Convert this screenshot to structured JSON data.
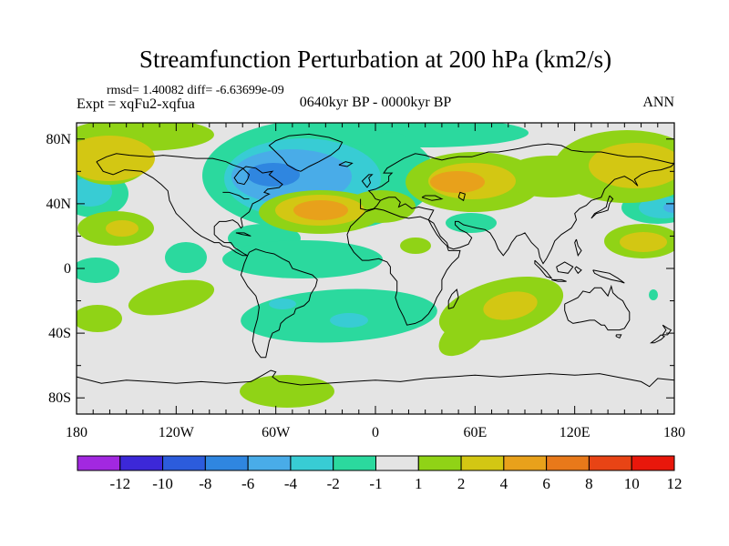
{
  "header": {
    "title": "Streamfunction Perturbation at 200 hPa (km2/s)",
    "stats_line": "rmsd= 1.40082 diff= -6.63699e-09",
    "experiment_line": "Expt = xqFu2-xqfua",
    "period_line": "0640kyr BP - 0000kyr BP",
    "season_label": "ANN"
  },
  "chart_data": {
    "type": "heatmap",
    "subtype": "filled-contour-world-map",
    "title": "Streamfunction Perturbation at 200 hPa (km2/s)",
    "units": "km2/s",
    "projection": "equirectangular",
    "lon_range": [
      -180,
      180
    ],
    "lat_range": [
      -90,
      90
    ],
    "grid": false,
    "background_value_color": "#E4E4E4",
    "lon_tick_labels": [
      {
        "label": "180",
        "lon": -180
      },
      {
        "label": "120W",
        "lon": -120
      },
      {
        "label": "60W",
        "lon": -60
      },
      {
        "label": "0",
        "lon": 0
      },
      {
        "label": "60E",
        "lon": 60
      },
      {
        "label": "120E",
        "lon": 120
      },
      {
        "label": "180",
        "lon": 180
      }
    ],
    "lat_tick_labels": [
      {
        "label": "80N",
        "lat": 80
      },
      {
        "label": "40N",
        "lat": 40
      },
      {
        "label": "0",
        "lat": 0
      },
      {
        "label": "40S",
        "lat": -40
      },
      {
        "label": "80S",
        "lat": -80
      }
    ],
    "colorbar": {
      "orientation": "horizontal",
      "boundary_labels": [
        "-12",
        "-10",
        "-8",
        "-6",
        "-4",
        "-2",
        "-1",
        "1",
        "2",
        "4",
        "6",
        "8",
        "10",
        "12"
      ],
      "segment_colors": [
        "#A228E0",
        "#3C28D8",
        "#2C5CDC",
        "#2F86E0",
        "#49ACE8",
        "#38CCD4",
        "#2BD99E",
        "#E4E4E4",
        "#90D316",
        "#D3C713",
        "#E8A11B",
        "#E8791A",
        "#E84415",
        "#E8170B"
      ]
    },
    "level_colors": {
      "-8": "#2F86E0",
      "-6": "#49ACE8",
      "-4": "#38CCD4",
      "-2": "#2BD99E",
      "1": "#90D316",
      "2": "#D3C713",
      "4": "#E8A11B"
    },
    "anomalies": [
      {
        "region": "north-america-north-atlantic-outer",
        "value_bin": "-2 to -1",
        "color": "#2BD99E",
        "ellipse": [
          350,
          193,
          128,
          62,
          0
        ]
      },
      {
        "region": "arctic-ocean-band",
        "value_bin": "-2 to -1",
        "color": "#2BD99E",
        "ellipse": [
          465,
          146,
          115,
          16,
          0
        ]
      },
      {
        "region": "scandinavia-lobe",
        "value_bin": "-2 to -1",
        "color": "#2BD99E",
        "ellipse": [
          428,
          185,
          36,
          40,
          0
        ]
      },
      {
        "region": "gulf-of-mexico-link",
        "value_bin": "-2 to -1",
        "color": "#2BD99E",
        "ellipse": [
          290,
          262,
          40,
          16,
          0
        ]
      },
      {
        "region": "caribbean-tropical-atlantic-band",
        "value_bin": "-2 to -1",
        "color": "#2BD99E",
        "ellipse": [
          332,
          285,
          88,
          21,
          0
        ]
      },
      {
        "region": "east-pacific-equatorial",
        "value_bin": "-2 to -1",
        "color": "#2BD99E",
        "ellipse": [
          204,
          283,
          23,
          17,
          0
        ]
      },
      {
        "region": "dateline-equatorial",
        "value_bin": "-2 to -1",
        "color": "#2BD99E",
        "ellipse": [
          105,
          297,
          26,
          14,
          0
        ]
      },
      {
        "region": "south-america-south-atlantic-band",
        "value_bin": "-2 to -1",
        "color": "#2BD99E",
        "ellipse": [
          372,
          347,
          108,
          29,
          -3
        ]
      },
      {
        "region": "tibet",
        "value_bin": "-2 to -1",
        "color": "#2BD99E",
        "ellipse": [
          517,
          245,
          28,
          11,
          0
        ]
      },
      {
        "region": "southwest-pacific-speck",
        "value_bin": "-2 to -1",
        "color": "#2BD99E",
        "ellipse": [
          717,
          324,
          5,
          6,
          0
        ]
      },
      {
        "region": "northwest-pacific-outer",
        "value_bin": "-2 to -1",
        "color": "#2BD99E",
        "ellipse": [
          722,
          228,
          40,
          18,
          0
        ]
      },
      {
        "region": "north-pacific-dateline-outer",
        "value_bin": "-2 to -1",
        "color": "#2BD99E",
        "ellipse": [
          103,
          213,
          38,
          26,
          0
        ]
      },
      {
        "region": "canada-north-atlantic",
        "value_bin": "-4 to -2",
        "color": "#38CCD4",
        "ellipse": [
          332,
          196,
          86,
          44,
          0
        ]
      },
      {
        "region": "south-america-inset-west",
        "value_bin": "-4 to -2",
        "color": "#38CCD4",
        "ellipse": [
          310,
          334,
          15,
          6,
          0
        ]
      },
      {
        "region": "south-atlantic-inset",
        "value_bin": "-4 to -2",
        "color": "#38CCD4",
        "ellipse": [
          383,
          352,
          21,
          8,
          0
        ]
      },
      {
        "region": "northwest-pacific-mid",
        "value_bin": "-4 to -2",
        "color": "#38CCD4",
        "ellipse": [
          728,
          228,
          27,
          12,
          0
        ]
      },
      {
        "region": "north-pacific-dateline-core",
        "value_bin": "-4 to -2",
        "color": "#38CCD4",
        "ellipse": [
          99,
          211,
          24,
          16,
          0
        ]
      },
      {
        "region": "hudson-north-atlantic",
        "value_bin": "-6 to -4",
        "color": "#49ACE8",
        "ellipse": [
          320,
          194,
          66,
          30,
          0
        ]
      },
      {
        "region": "northwest-pacific-core",
        "value_bin": "-6 to -4",
        "color": "#49ACE8",
        "ellipse": [
          740,
          228,
          12,
          6,
          0
        ]
      },
      {
        "region": "hudson-bay-core",
        "value_bin": "-8 to -6",
        "color": "#2F86E0",
        "ellipse": [
          300,
          192,
          29,
          13,
          0
        ]
      },
      {
        "region": "alaska-top-band",
        "value_bin": "1 to 2",
        "color": "#90D316",
        "ellipse": [
          155,
          148,
          80,
          18,
          0
        ]
      },
      {
        "region": "alaska-outer",
        "value_bin": "1 to 2",
        "color": "#90D316",
        "ellipse": [
          120,
          172,
          46,
          31,
          0
        ]
      },
      {
        "region": "central-asia-outer",
        "value_bin": "1 to 2",
        "color": "#90D316",
        "ellipse": [
          520,
          200,
          75,
          33,
          0
        ]
      },
      {
        "region": "east-siberia-outer",
        "value_bin": "1 to 2",
        "color": "#90D316",
        "ellipse": [
          688,
          183,
          80,
          40,
          0
        ]
      },
      {
        "region": "siberia-bridge",
        "value_bin": "1 to 2",
        "color": "#90D316",
        "ellipse": [
          605,
          194,
          55,
          23,
          0
        ]
      },
      {
        "region": "northeast-atlantic-outer",
        "value_bin": "1 to 2",
        "color": "#90D316",
        "ellipse": [
          352,
          233,
          68,
          24,
          0
        ]
      },
      {
        "region": "iberia-extension",
        "value_bin": "1 to 2",
        "color": "#90D316",
        "ellipse": [
          418,
          227,
          38,
          18,
          0
        ]
      },
      {
        "region": "central-north-pacific",
        "value_bin": "1 to 2",
        "color": "#90D316",
        "ellipse": [
          127,
          251,
          42,
          19,
          0
        ]
      },
      {
        "region": "arabia",
        "value_bin": "1 to 2",
        "color": "#90D316",
        "ellipse": [
          456,
          270,
          17,
          9,
          0
        ]
      },
      {
        "region": "philippine-sea-outer",
        "value_bin": "1 to 2",
        "color": "#90D316",
        "ellipse": [
          705,
          265,
          42,
          19,
          0
        ]
      },
      {
        "region": "south-pacific",
        "value_bin": "1 to 2",
        "color": "#90D316",
        "ellipse": [
          188,
          327,
          48,
          17,
          -12
        ]
      },
      {
        "region": "south-pacific-dateline",
        "value_bin": "1 to 2",
        "color": "#90D316",
        "ellipse": [
          107,
          350,
          27,
          15,
          0
        ]
      },
      {
        "region": "south-indian-ocean-outer",
        "value_bin": "1 to 2",
        "color": "#90D316",
        "ellipse": [
          550,
          339,
          70,
          31,
          -15
        ]
      },
      {
        "region": "south-indian-ocean-tail",
        "value_bin": "1 to 2",
        "color": "#90D316",
        "ellipse": [
          508,
          369,
          30,
          17,
          -35
        ]
      },
      {
        "region": "antarctic-peninsula",
        "value_bin": "1 to 2",
        "color": "#90D316",
        "ellipse": [
          315,
          430,
          52,
          18,
          0
        ]
      },
      {
        "region": "alaska-core",
        "value_bin": "2 to 4",
        "color": "#D3C713",
        "ellipse": [
          120,
          174,
          50,
          25,
          0
        ]
      },
      {
        "region": "central-asia-mid",
        "value_bin": "2 to 4",
        "color": "#D3C713",
        "ellipse": [
          518,
          199,
          48,
          20,
          0
        ]
      },
      {
        "region": "east-siberia-core",
        "value_bin": "2 to 4",
        "color": "#D3C713",
        "ellipse": [
          698,
          182,
          52,
          25,
          0
        ]
      },
      {
        "region": "northeast-atlantic-mid",
        "value_bin": "2 to 4",
        "color": "#D3C713",
        "ellipse": [
          351,
          231,
          49,
          17,
          0
        ]
      },
      {
        "region": "central-north-pacific-core",
        "value_bin": "2 to 4",
        "color": "#D3C713",
        "ellipse": [
          134,
          251,
          18,
          9,
          0
        ]
      },
      {
        "region": "philippine-sea-core",
        "value_bin": "2 to 4",
        "color": "#D3C713",
        "ellipse": [
          706,
          266,
          26,
          11,
          0
        ]
      },
      {
        "region": "south-indian-ocean-core",
        "value_bin": "2 to 4",
        "color": "#D3C713",
        "ellipse": [
          560,
          336,
          30,
          15,
          -10
        ]
      },
      {
        "region": "central-asia-core",
        "value_bin": "4 to 6",
        "color": "#E8A11B",
        "ellipse": [
          502,
          200,
          30,
          12,
          0
        ]
      },
      {
        "region": "northeast-atlantic-core",
        "value_bin": "4 to 6",
        "color": "#E8A11B",
        "ellipse": [
          352,
          231,
          30,
          11,
          0
        ]
      }
    ]
  }
}
